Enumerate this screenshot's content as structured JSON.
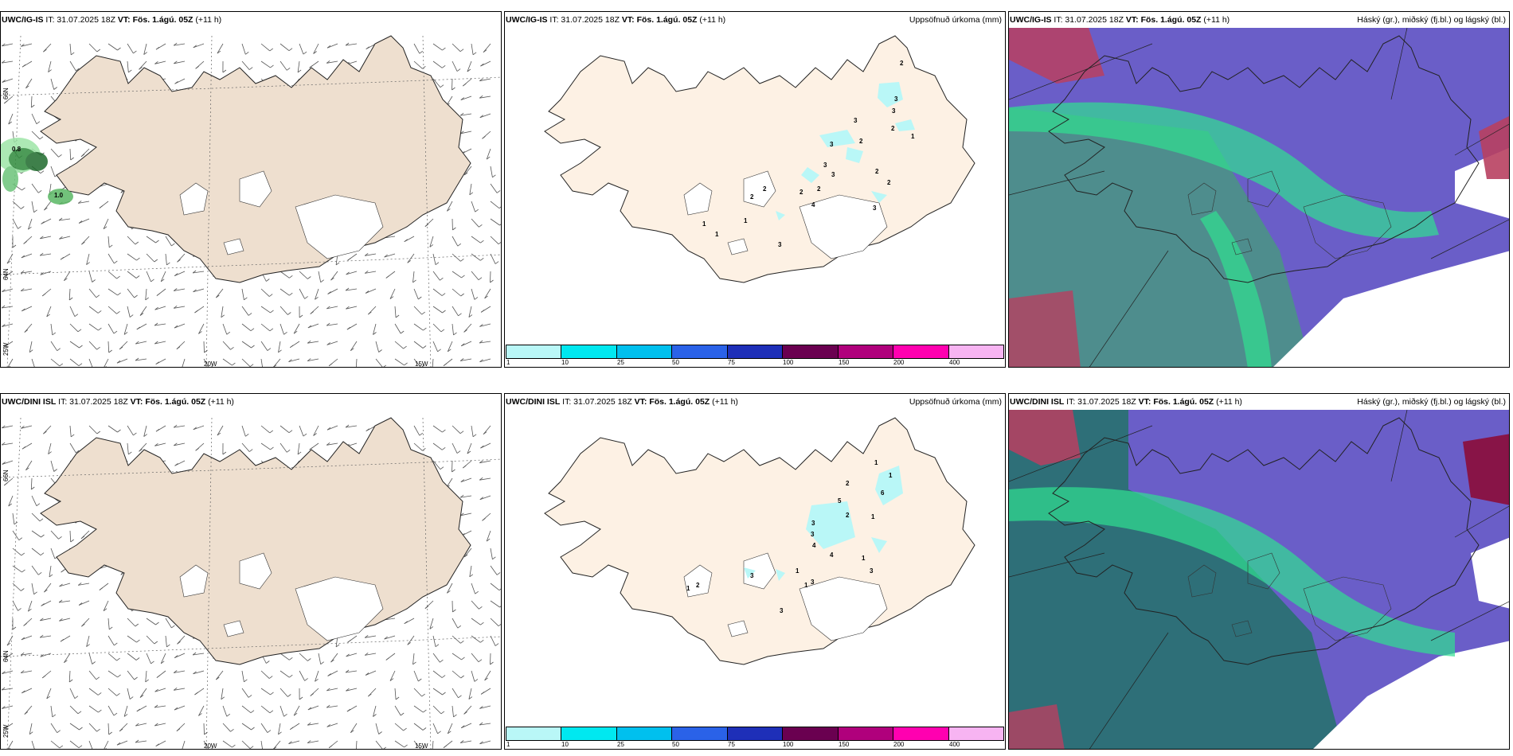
{
  "rows": [
    {
      "model": "UWC/IG-IS",
      "init": "IT: 31.07.2025 18Z",
      "valid_label": "VT: Fös. 1.ágú. 05Z",
      "lead": "(+11 h)",
      "lon_labels": [
        "20W",
        "15W"
      ],
      "lat_labels": [
        "66N",
        "64N",
        "25W"
      ],
      "wind_values": [
        "0.8",
        "1.0"
      ],
      "precip_values": [
        "2",
        "3",
        "3",
        "3",
        "3",
        "2",
        "2",
        "1",
        "3",
        "3",
        "2",
        "2",
        "2",
        "2",
        "4",
        "3",
        "1",
        "1",
        "1",
        "3",
        "2",
        "2"
      ]
    },
    {
      "model": "UWC/DINI ISL",
      "init": "IT: 31.07.2025 18Z",
      "valid_label": "VT: Fös. 1.ágú. 05Z",
      "lead": "(+11 h)",
      "lon_labels": [
        "20W",
        "15W"
      ],
      "lat_labels": [
        "66N",
        "64N",
        "25W"
      ],
      "wind_values": [],
      "precip_values": [
        "1",
        "2",
        "6",
        "5",
        "1",
        "1",
        "3",
        "2",
        "3",
        "4",
        "4",
        "1",
        "3",
        "3",
        "1",
        "1",
        "3",
        "3",
        "1",
        "2"
      ]
    }
  ],
  "precip_title": "Uppsöfnuð úrkoma (mm)",
  "cloud_title": "Háský (gr.), miðský (fj.bl.) og lágský (bl.)",
  "precip_colorbar": {
    "ticks": [
      "1",
      "10",
      "25",
      "50",
      "75",
      "100",
      "150",
      "200",
      "400"
    ],
    "colors": [
      "#b9f7f7",
      "#00e8f0",
      "#00c0ee",
      "#2a62e8",
      "#1e2fb8",
      "#6a0050",
      "#b0007c",
      "#ff00b0",
      "#f7b4f2"
    ]
  },
  "colors": {
    "land_wind": "#eedfcf",
    "land_precip": "#fdf1e4",
    "sea_cloud": "#2e7f83",
    "high_cloud": "#30e090",
    "mid_cloud": "#6a5ec8",
    "low_cloud": "#b84060"
  }
}
